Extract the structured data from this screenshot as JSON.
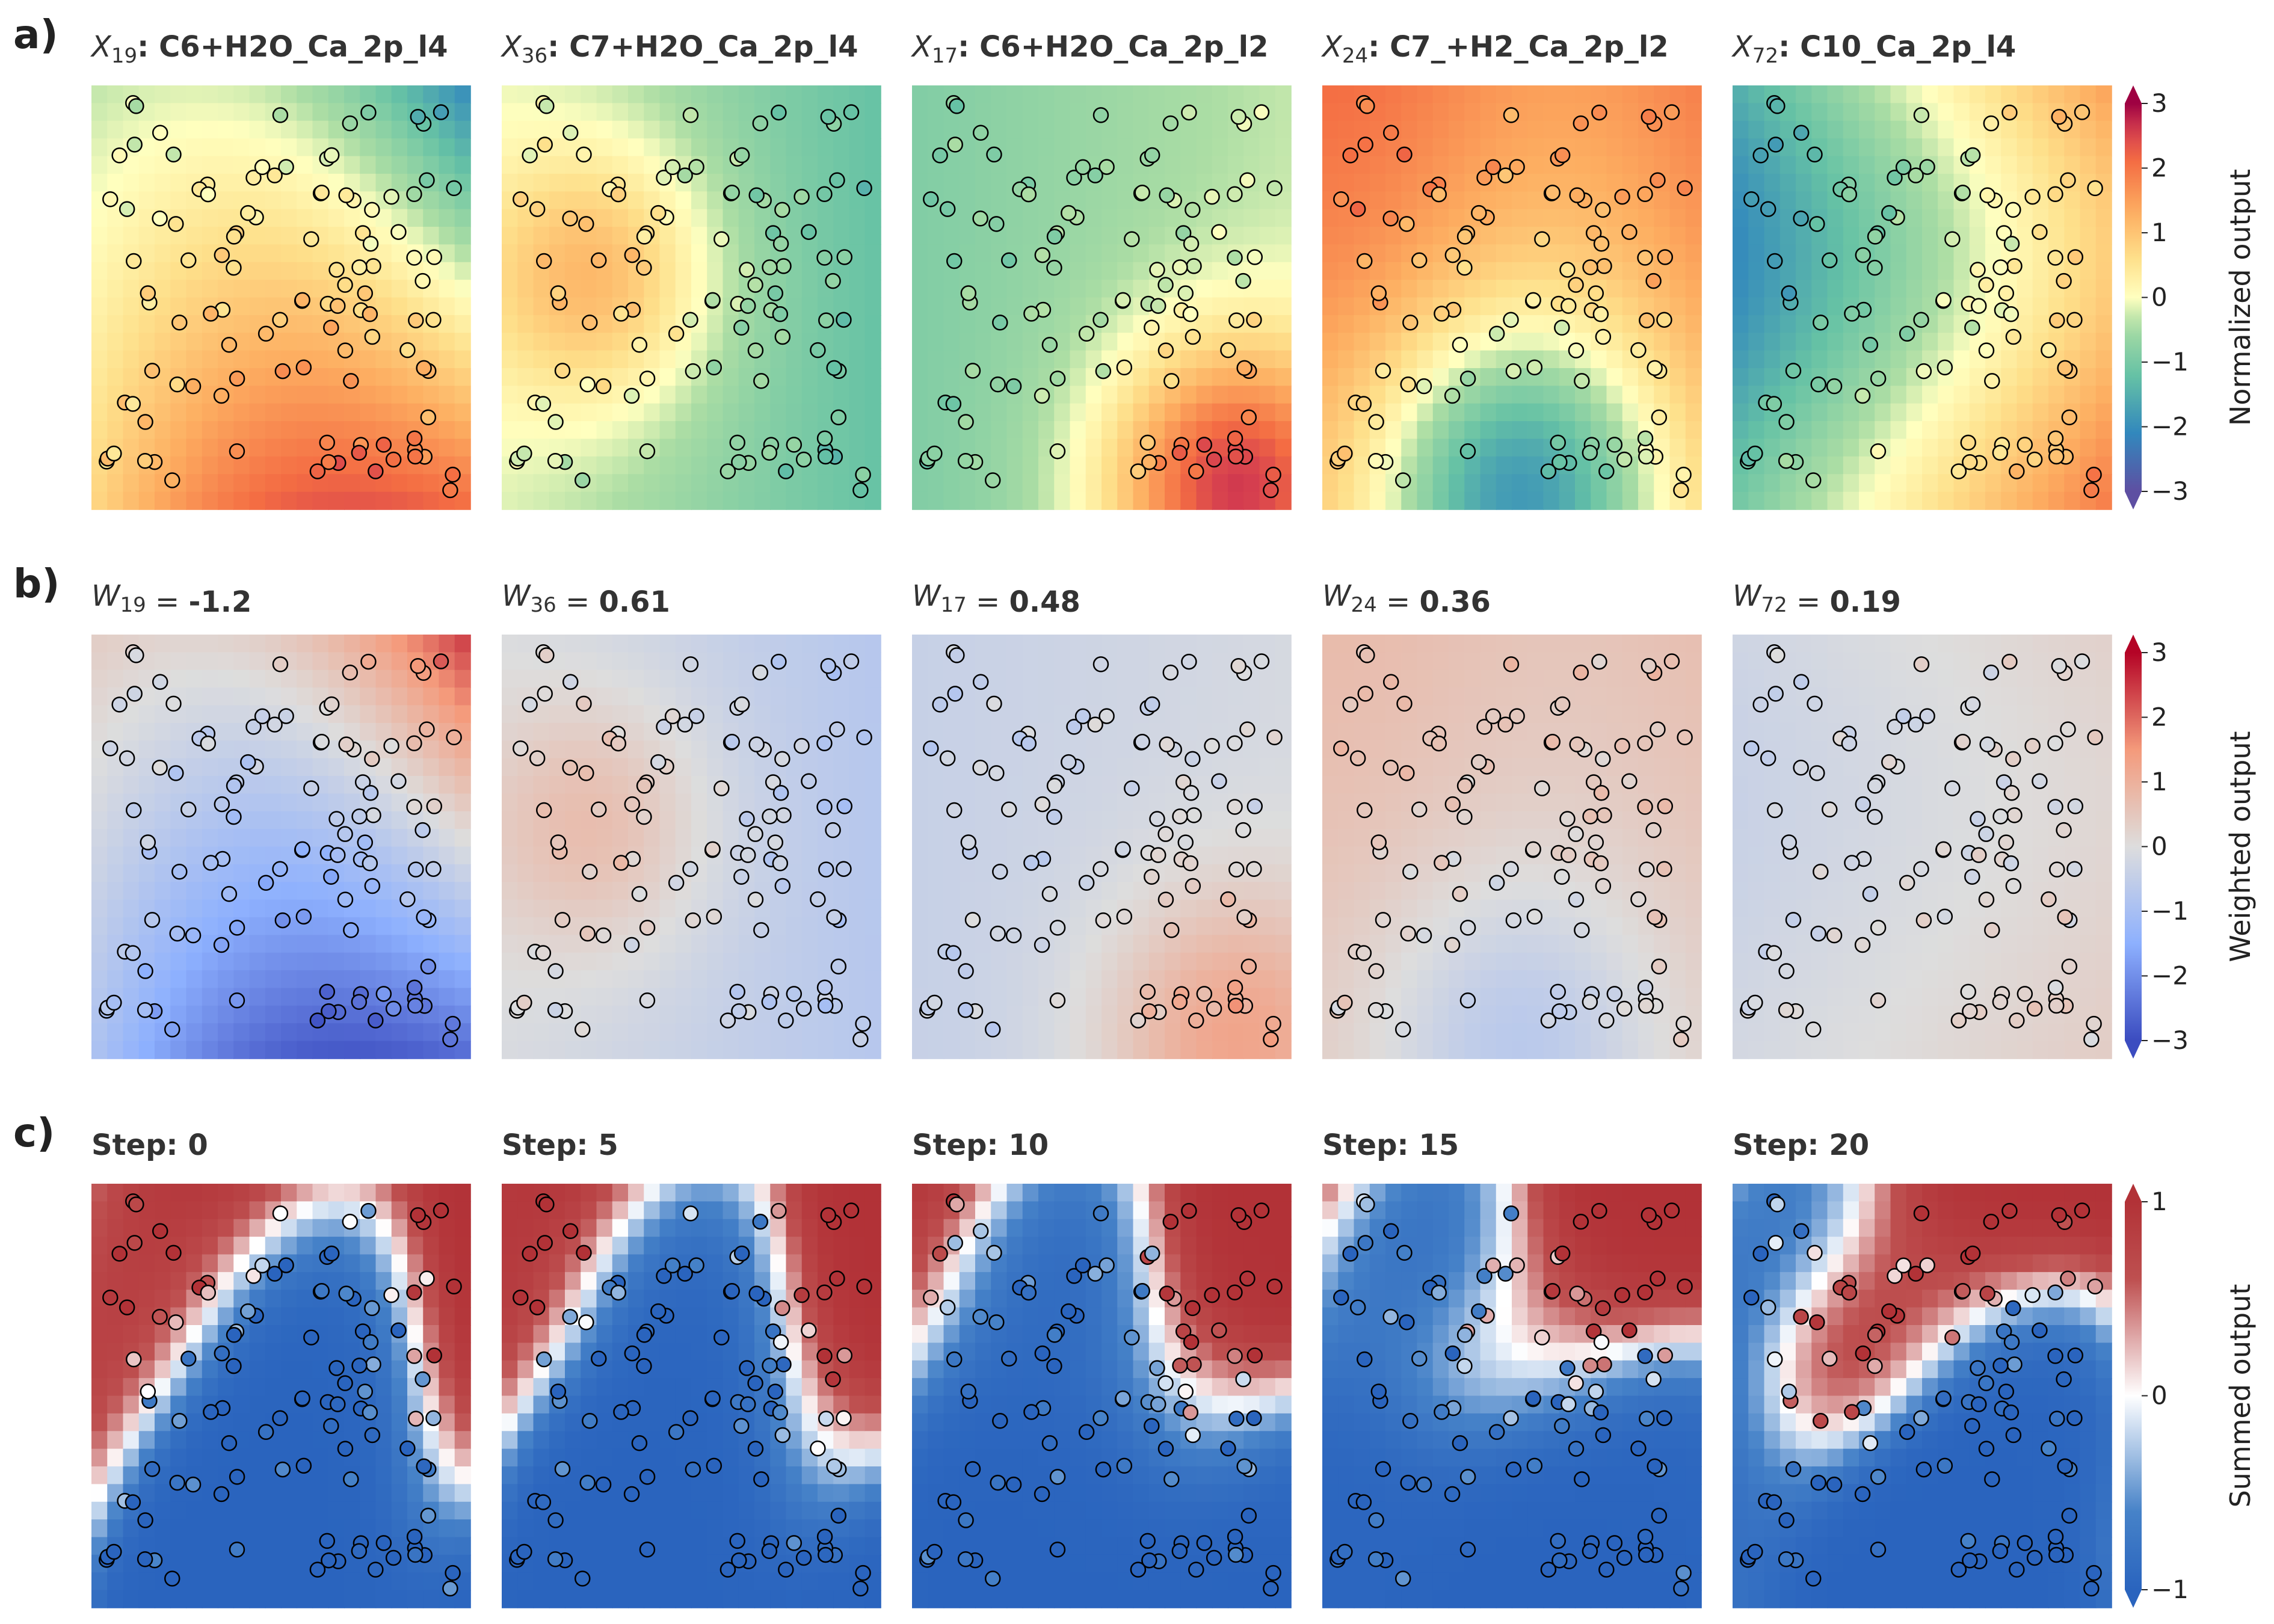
{
  "chart_data": [
    {
      "row": "a)",
      "type": "heatmap",
      "colorbar_label": "Normalized output",
      "colorbar_ticks": [
        "3",
        "2",
        "1",
        "0",
        "−1",
        "−2",
        "−3"
      ],
      "vmin": -3,
      "vmax": 3,
      "colormap": "Spectral_r",
      "panels": [
        {
          "title_var": "X",
          "title_sub": "19",
          "title_bold": ": C6+H2O_Ca_2p_l4"
        },
        {
          "title_var": "X",
          "title_sub": "36",
          "title_bold": ": C7+H2O_Ca_2p_l4"
        },
        {
          "title_var": "X",
          "title_sub": "17",
          "title_bold": ": C6+H2O_Ca_2p_l2"
        },
        {
          "title_var": "X",
          "title_sub": "24",
          "title_bold": ": C7_+H2_Ca_2p_l2"
        },
        {
          "title_var": "X",
          "title_sub": "72",
          "title_bold": ": C10_Ca_2p_l4"
        }
      ]
    },
    {
      "row": "b)",
      "type": "heatmap",
      "colorbar_label": "Weighted output",
      "colorbar_ticks": [
        "3",
        "2",
        "1",
        "0",
        "−1",
        "−2",
        "−3"
      ],
      "vmin": -3,
      "vmax": 3,
      "colormap": "coolwarm",
      "panels": [
        {
          "title_var": "W",
          "title_sub": "19",
          "title_bold": "= -1.2",
          "weight": -1.2
        },
        {
          "title_var": "W",
          "title_sub": "36",
          "title_bold": "= 0.61",
          "weight": 0.61
        },
        {
          "title_var": "W",
          "title_sub": "17",
          "title_bold": "= 0.48",
          "weight": 0.48
        },
        {
          "title_var": "W",
          "title_sub": "24",
          "title_bold": "= 0.36",
          "weight": 0.36
        },
        {
          "title_var": "W",
          "title_sub": "72",
          "title_bold": "= 0.19",
          "weight": 0.19
        }
      ]
    },
    {
      "row": "c)",
      "type": "heatmap",
      "colorbar_label": "Summed output",
      "colorbar_ticks": [
        "1",
        "0",
        "−1"
      ],
      "vmin": -1,
      "vmax": 1,
      "colormap": "RdBu_r",
      "panels": [
        {
          "title_bold": "Step: 0",
          "step": 0
        },
        {
          "title_bold": "Step: 5",
          "step": 5
        },
        {
          "title_bold": "Step: 10",
          "step": 10
        },
        {
          "title_bold": "Step: 15",
          "step": 15
        },
        {
          "title_bold": "Step: 20",
          "step": 20
        }
      ]
    }
  ],
  "colors": {
    "point_edge": "#000000",
    "text": "#333333"
  }
}
